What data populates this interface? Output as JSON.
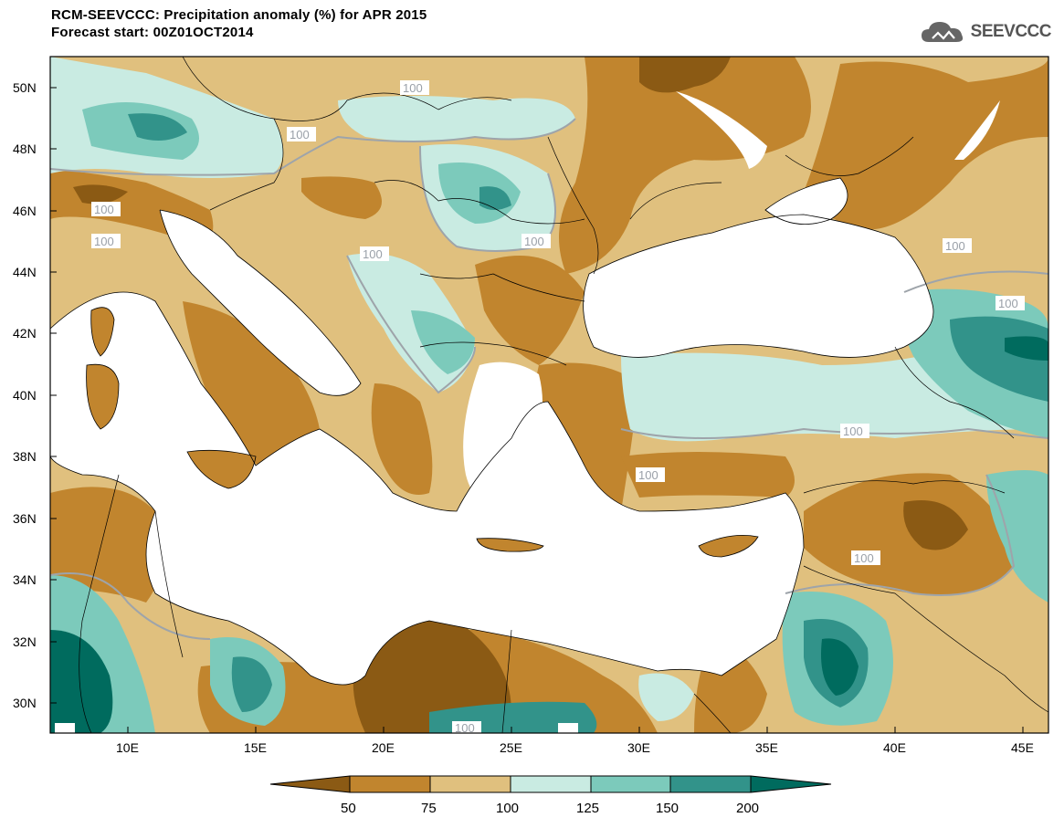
{
  "title": {
    "line1": "RCM-SEEVCCC: Precipitation anomaly (%) for APR 2015",
    "line2": "Forecast start: 00Z01OCT2014"
  },
  "logo": {
    "text": "SEEVCCC",
    "icon": "cloud-logo-icon"
  },
  "axes": {
    "lat_ticks": [
      "50N",
      "48N",
      "46N",
      "44N",
      "42N",
      "40N",
      "38N",
      "36N",
      "34N",
      "32N",
      "30N"
    ],
    "lon_ticks": [
      "10E",
      "15E",
      "20E",
      "25E",
      "30E",
      "35E",
      "40E",
      "45E"
    ]
  },
  "contour_labels": [
    "100",
    "100",
    "100",
    "100",
    "100",
    "100",
    "100",
    "100",
    "100",
    "100",
    "100",
    "100"
  ],
  "colorbar": {
    "labels": [
      "50",
      "75",
      "100",
      "125",
      "150",
      "200"
    ],
    "colors": [
      "#8b5a14",
      "#c1852e",
      "#e0c07e",
      "#c9ebe2",
      "#7ccabb",
      "#32938a",
      "#006b5e"
    ]
  },
  "palette": {
    "very_dry": "#8b5a14",
    "dry": "#c1852e",
    "slightly_dry": "#e0c07e",
    "slightly_wet": "#c9ebe2",
    "wet": "#7ccabb",
    "very_wet": "#32938a",
    "extreme_wet": "#006b5e",
    "sea": "#ffffff"
  }
}
